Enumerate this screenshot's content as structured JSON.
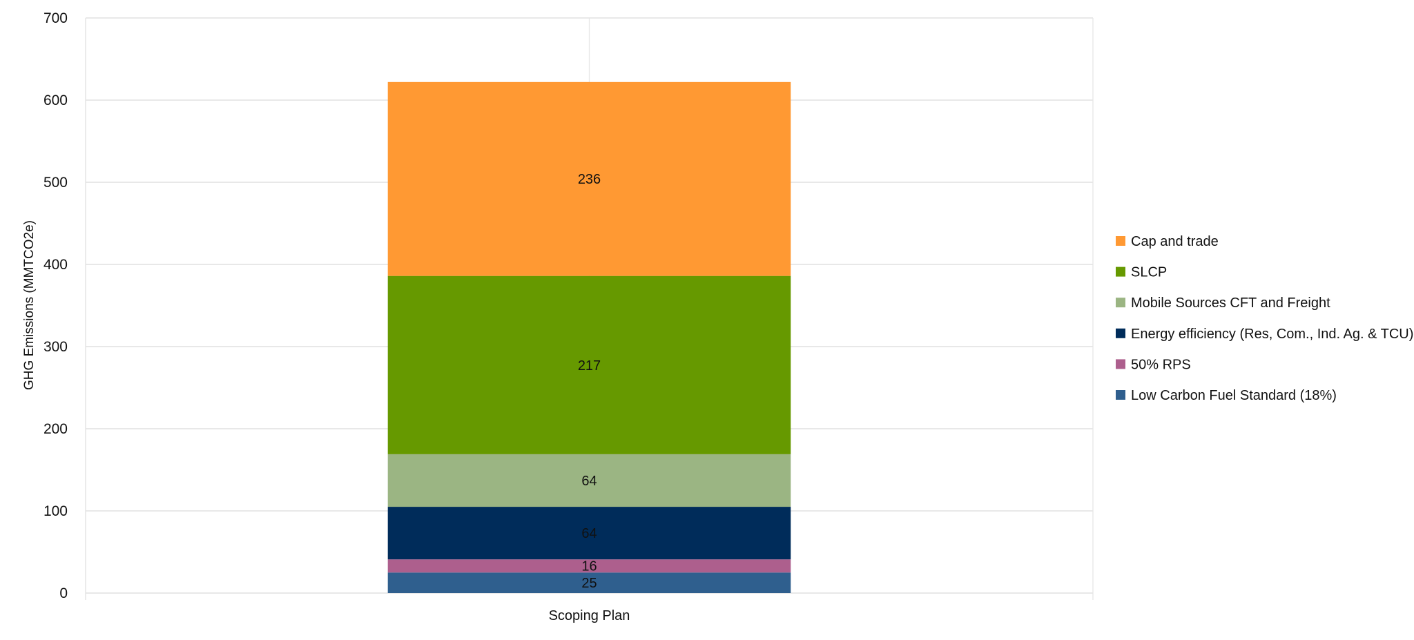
{
  "chart_data": {
    "type": "bar",
    "stacked": true,
    "title": "",
    "xlabel": "",
    "ylabel": "GHG Emissions (MMTCO2e)",
    "ylim": [
      0,
      700
    ],
    "yticks": [
      0,
      100,
      200,
      300,
      400,
      500,
      600,
      700
    ],
    "grid": true,
    "legend_position": "right",
    "categories": [
      "Scoping Plan"
    ],
    "series": [
      {
        "name": "Low Carbon Fuel Standard (18%)",
        "values": [
          25
        ],
        "color": "#2F5F8E",
        "label_color": "#111111"
      },
      {
        "name": "50% RPS",
        "values": [
          16
        ],
        "color": "#AD5F8D",
        "label_color": "#111111"
      },
      {
        "name": "Energy efficiency (Res, Com., Ind. Ag. & TCU)",
        "values": [
          64
        ],
        "color": "#002C5A",
        "label_color": "#111111"
      },
      {
        "name": "Mobile Sources CFT and Freight",
        "values": [
          64
        ],
        "color": "#9BB583",
        "label_color": "#111111"
      },
      {
        "name": "SLCP",
        "values": [
          217
        ],
        "color": "#669900",
        "label_color": "#111111"
      },
      {
        "name": "Cap and trade",
        "values": [
          236
        ],
        "color": "#FF9933",
        "label_color": "#111111"
      }
    ]
  }
}
